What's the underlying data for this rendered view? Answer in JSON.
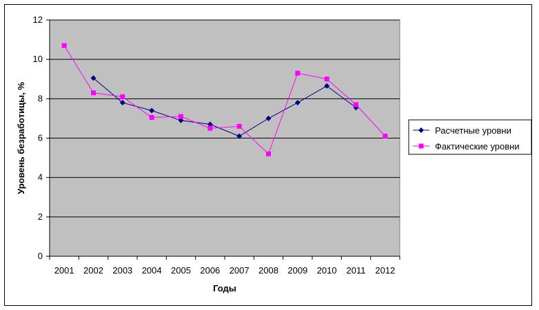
{
  "chart_data": {
    "type": "line",
    "title": "",
    "xlabel": "Годы",
    "ylabel": "Уровень безработицы, %",
    "categories": [
      "2001",
      "2002",
      "2003",
      "2004",
      "2005",
      "2006",
      "2007",
      "2008",
      "2009",
      "2010",
      "2011",
      "2012"
    ],
    "ylim": [
      0,
      12
    ],
    "yticks": [
      0,
      2,
      4,
      6,
      8,
      10,
      12
    ],
    "grid": true,
    "legend": "right",
    "series": [
      {
        "name": "Расчетные уровни",
        "color": "#000080",
        "marker": "diamond",
        "values": [
          null,
          9.05,
          7.8,
          7.4,
          6.9,
          6.7,
          6.1,
          7.0,
          7.8,
          8.65,
          7.55,
          null
        ]
      },
      {
        "name": "Фактические уровни",
        "color": "#ff00ff",
        "marker": "square",
        "values": [
          10.7,
          8.3,
          8.1,
          7.05,
          7.1,
          6.5,
          6.6,
          5.2,
          9.3,
          9.0,
          7.7,
          6.1
        ]
      }
    ],
    "plot_bg": "#c0c0c0"
  }
}
